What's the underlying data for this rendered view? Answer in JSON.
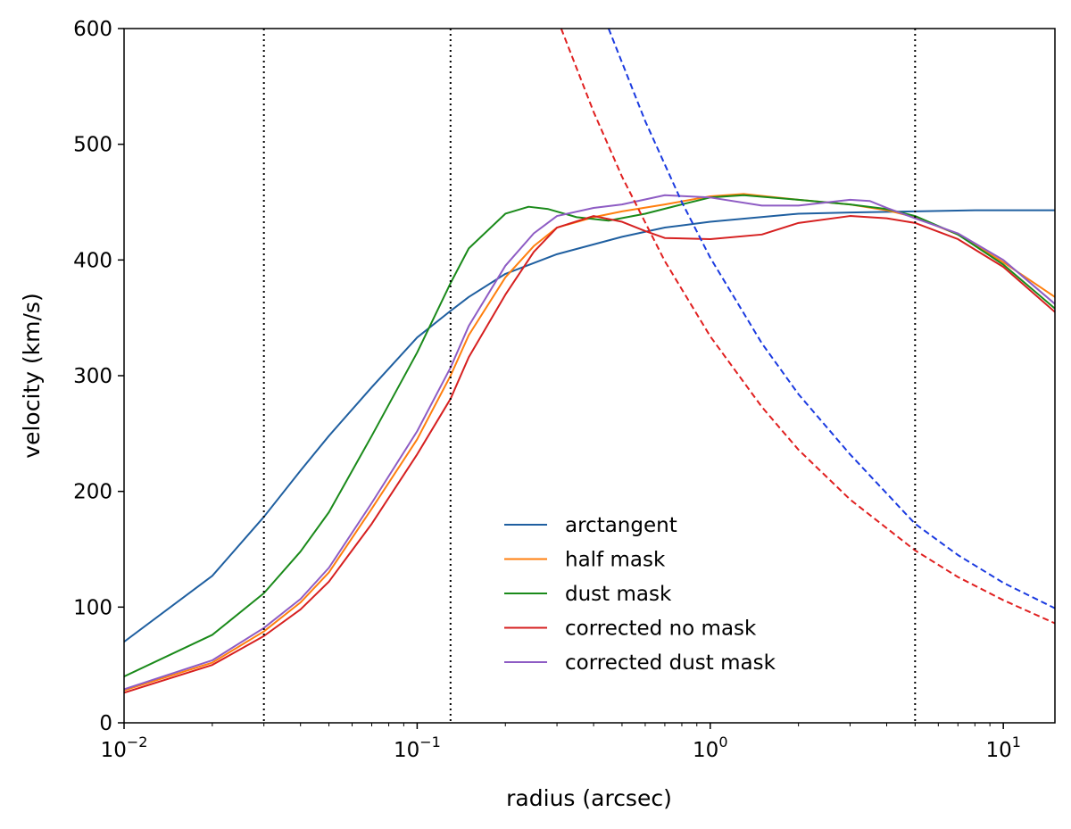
{
  "chart_data": {
    "type": "line",
    "xlabel": "radius (arcsec)",
    "ylabel": "velocity (km/s)",
    "xscale": "log",
    "xlim": [
      0.01,
      15
    ],
    "ylim": [
      0,
      600
    ],
    "x_ticks": [
      {
        "value": 0.01,
        "base": "10",
        "exp": "−2"
      },
      {
        "value": 0.1,
        "base": "10",
        "exp": "−1"
      },
      {
        "value": 1,
        "base": "10",
        "exp": "0"
      },
      {
        "value": 10,
        "base": "10",
        "exp": "1"
      }
    ],
    "y_ticks": [
      0,
      100,
      200,
      300,
      400,
      500,
      600
    ],
    "grid": false,
    "legend_position": "lower-center",
    "vlines": [
      0.03,
      0.13,
      5.0
    ],
    "series": [
      {
        "name": "arctangent",
        "color": "#1f5fa0",
        "style": "solid",
        "points": [
          [
            0.01,
            70
          ],
          [
            0.02,
            127
          ],
          [
            0.03,
            178
          ],
          [
            0.04,
            218
          ],
          [
            0.05,
            248
          ],
          [
            0.07,
            290
          ],
          [
            0.1,
            333
          ],
          [
            0.13,
            356
          ],
          [
            0.15,
            368
          ],
          [
            0.2,
            388
          ],
          [
            0.3,
            405
          ],
          [
            0.5,
            420
          ],
          [
            0.7,
            428
          ],
          [
            1,
            433
          ],
          [
            2,
            440
          ],
          [
            3,
            441
          ],
          [
            5,
            442
          ],
          [
            8,
            443
          ],
          [
            10,
            443
          ],
          [
            15,
            443
          ]
        ]
      },
      {
        "name": "half mask",
        "color": "#ff7f0e",
        "style": "solid",
        "points": [
          [
            0.01,
            28
          ],
          [
            0.02,
            52
          ],
          [
            0.03,
            79
          ],
          [
            0.04,
            104
          ],
          [
            0.05,
            130
          ],
          [
            0.07,
            185
          ],
          [
            0.1,
            245
          ],
          [
            0.13,
            300
          ],
          [
            0.15,
            335
          ],
          [
            0.2,
            385
          ],
          [
            0.25,
            412
          ],
          [
            0.3,
            428
          ],
          [
            0.4,
            437
          ],
          [
            0.5,
            442
          ],
          [
            0.7,
            448
          ],
          [
            1,
            455
          ],
          [
            1.3,
            457
          ],
          [
            2,
            452
          ],
          [
            3,
            448
          ],
          [
            4,
            443
          ],
          [
            5,
            437
          ],
          [
            7,
            422
          ],
          [
            10,
            398
          ],
          [
            15,
            368
          ]
        ]
      },
      {
        "name": "dust mask",
        "color": "#1a8a1a",
        "style": "solid",
        "points": [
          [
            0.01,
            40
          ],
          [
            0.02,
            76
          ],
          [
            0.03,
            112
          ],
          [
            0.04,
            148
          ],
          [
            0.05,
            182
          ],
          [
            0.07,
            248
          ],
          [
            0.1,
            320
          ],
          [
            0.13,
            380
          ],
          [
            0.15,
            410
          ],
          [
            0.2,
            440
          ],
          [
            0.24,
            446
          ],
          [
            0.28,
            444
          ],
          [
            0.35,
            437
          ],
          [
            0.45,
            434
          ],
          [
            0.6,
            440
          ],
          [
            0.8,
            448
          ],
          [
            1,
            454
          ],
          [
            1.3,
            456
          ],
          [
            2,
            452
          ],
          [
            3,
            448
          ],
          [
            4,
            444
          ],
          [
            5,
            438
          ],
          [
            7,
            422
          ],
          [
            10,
            396
          ],
          [
            15,
            358
          ]
        ]
      },
      {
        "name": "corrected no mask",
        "color": "#d62020",
        "style": "solid",
        "points": [
          [
            0.01,
            26
          ],
          [
            0.02,
            50
          ],
          [
            0.03,
            75
          ],
          [
            0.04,
            98
          ],
          [
            0.05,
            122
          ],
          [
            0.07,
            172
          ],
          [
            0.1,
            232
          ],
          [
            0.13,
            280
          ],
          [
            0.15,
            316
          ],
          [
            0.2,
            370
          ],
          [
            0.25,
            407
          ],
          [
            0.3,
            428
          ],
          [
            0.4,
            438
          ],
          [
            0.5,
            433
          ],
          [
            0.6,
            425
          ],
          [
            0.7,
            419
          ],
          [
            1,
            418
          ],
          [
            1.5,
            422
          ],
          [
            2,
            432
          ],
          [
            3,
            438
          ],
          [
            4,
            436
          ],
          [
            5,
            432
          ],
          [
            7,
            418
          ],
          [
            10,
            394
          ],
          [
            15,
            355
          ]
        ]
      },
      {
        "name": "corrected dust mask",
        "color": "#8e5cc4",
        "style": "solid",
        "points": [
          [
            0.01,
            29
          ],
          [
            0.02,
            54
          ],
          [
            0.03,
            82
          ],
          [
            0.04,
            107
          ],
          [
            0.05,
            134
          ],
          [
            0.07,
            190
          ],
          [
            0.1,
            252
          ],
          [
            0.13,
            307
          ],
          [
            0.15,
            343
          ],
          [
            0.2,
            395
          ],
          [
            0.25,
            423
          ],
          [
            0.3,
            438
          ],
          [
            0.4,
            445
          ],
          [
            0.5,
            448
          ],
          [
            0.7,
            456
          ],
          [
            1,
            454
          ],
          [
            1.5,
            447
          ],
          [
            2,
            447
          ],
          [
            3,
            452
          ],
          [
            3.5,
            451
          ],
          [
            4,
            445
          ],
          [
            5,
            436
          ],
          [
            7,
            423
          ],
          [
            10,
            400
          ],
          [
            15,
            362
          ]
        ]
      },
      {
        "name": "",
        "color": "#e02020",
        "style": "dashed",
        "points": [
          [
            0.31,
            600
          ],
          [
            0.4,
            528
          ],
          [
            0.5,
            472
          ],
          [
            0.7,
            399
          ],
          [
            1,
            334
          ],
          [
            1.5,
            273
          ],
          [
            2,
            236
          ],
          [
            3,
            193
          ],
          [
            5,
            149
          ],
          [
            7,
            126
          ],
          [
            10,
            106
          ],
          [
            15,
            86
          ]
        ]
      },
      {
        "name": "",
        "color": "#1a3ae0",
        "style": "dashed",
        "points": [
          [
            0.45,
            600
          ],
          [
            0.6,
            520
          ],
          [
            0.8,
            450
          ],
          [
            1,
            402
          ],
          [
            1.5,
            328
          ],
          [
            2,
            284
          ],
          [
            3,
            232
          ],
          [
            5,
            172
          ],
          [
            7,
            145
          ],
          [
            10,
            121
          ],
          [
            15,
            99
          ]
        ]
      }
    ]
  }
}
